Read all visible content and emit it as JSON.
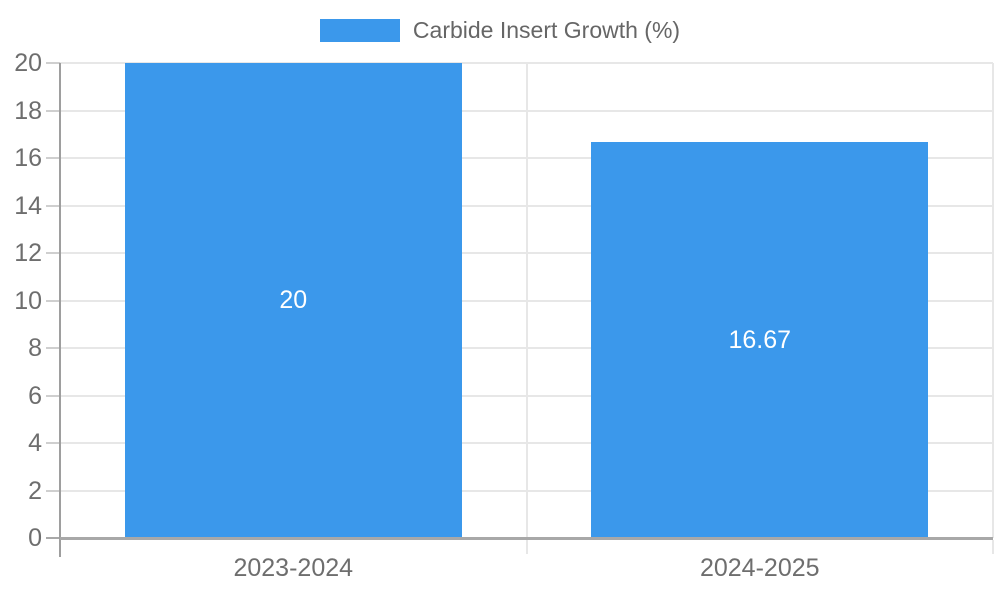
{
  "chart_data": {
    "type": "bar",
    "title": "Carbide Insert Growth (%)",
    "legend_label": "Carbide Insert Growth (%)",
    "legend_position": "top-center",
    "categories": [
      "2023-2024",
      "2024-2025"
    ],
    "series": [
      {
        "name": "Carbide Insert Growth (%)",
        "values": [
          20,
          16.67
        ]
      }
    ],
    "value_labels": [
      "20",
      "16.67"
    ],
    "xlabel": "",
    "ylabel": "",
    "ylim": [
      0,
      20
    ],
    "yticks": [
      0,
      2,
      4,
      6,
      8,
      10,
      12,
      14,
      16,
      18,
      20
    ],
    "grid": true,
    "colors": {
      "bar": "#3b98eb",
      "value_label": "#ffffff",
      "tick_label": "#6e6e6e",
      "legend_text": "#666666",
      "grid": "#e7e7e7",
      "axis": "#a8a8a8",
      "y_axis_line": "#9e9e9e",
      "tick_mark": "#cfcfcf",
      "background": "#ffffff"
    }
  }
}
